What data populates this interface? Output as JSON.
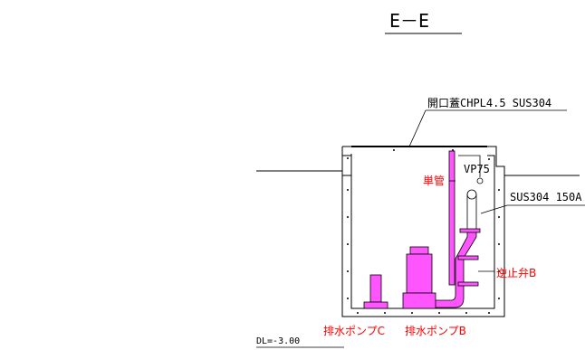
{
  "section_title": "E－E",
  "labels": {
    "cover": "開口蓋CHPL4.5 SUS304",
    "single_pipe": "単管",
    "vp": "VP75",
    "sus_pipe": "SUS304 150A",
    "check_valve": "逆止弁B",
    "pump_c": "排水ポンプC",
    "pump_b": "排水ポンプB",
    "dl": "DL=-3.00"
  },
  "colors": {
    "line": "#000000",
    "equipment": "#ff55ff",
    "label_red": "#ff0000"
  }
}
